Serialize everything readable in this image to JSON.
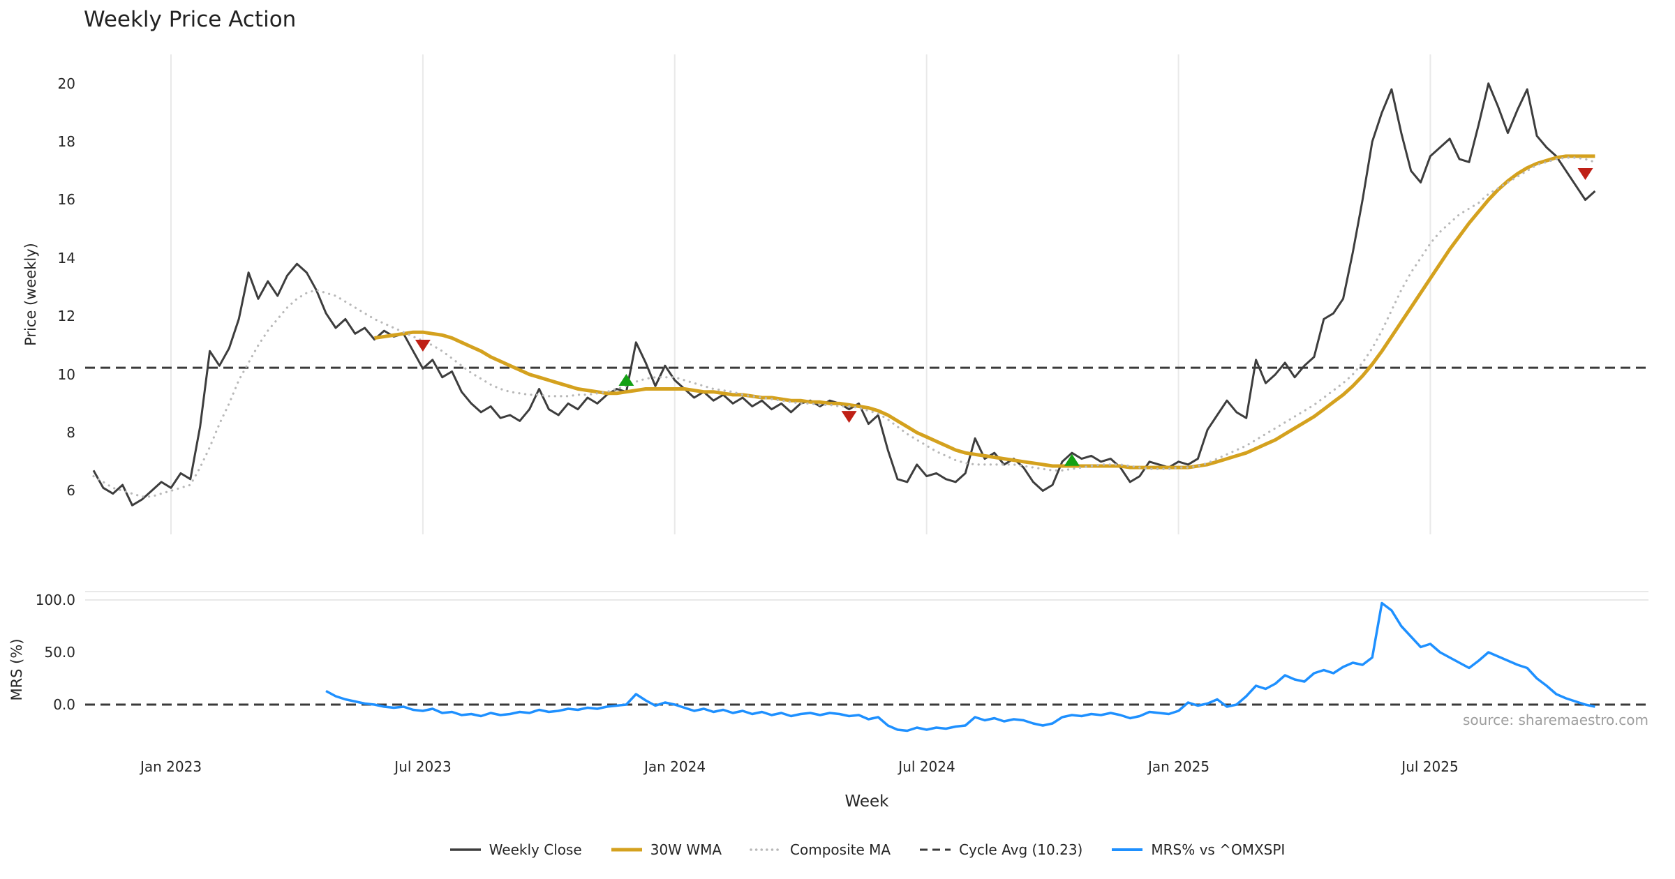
{
  "title": "Weekly Price Action",
  "source": "source: sharemaestro.com",
  "chart_data": {
    "type": "line",
    "x": {
      "label": "Week",
      "unit": "week",
      "total_weeks": 156,
      "ticks": [
        {
          "week": 8,
          "label": "Jan 2023"
        },
        {
          "week": 34,
          "label": "Jul 2023"
        },
        {
          "week": 60,
          "label": "Jan 2024"
        },
        {
          "week": 86,
          "label": "Jul 2024"
        },
        {
          "week": 112,
          "label": "Jan 2025"
        },
        {
          "week": 138,
          "label": "Jul 2025"
        }
      ]
    },
    "style": {
      "grid_color": "#e9e9e9",
      "background": "#ffffff",
      "tick_color": "#262626"
    },
    "marker_colors": {
      "buy": "#14a014",
      "sell": "#bf2016"
    },
    "panels": [
      {
        "name": "price",
        "ylabel": "Price (weekly)",
        "ylim": [
          4.5,
          21
        ],
        "yticks": [
          6,
          8,
          10,
          12,
          14,
          16,
          18,
          20
        ],
        "ytick_labels": [
          "6",
          "8",
          "10",
          "12",
          "14",
          "16",
          "18",
          "20"
        ],
        "hline": {
          "label": "Cycle Avg",
          "value": 10.23,
          "color": "#3a3a3a",
          "dash": "dashed"
        },
        "series": [
          {
            "id": "weekly-close",
            "name": "Weekly Close",
            "color": "#3d3d3d",
            "dash": "solid",
            "width": 3,
            "start_week": 0,
            "values": [
              6.7,
              6.1,
              5.9,
              6.2,
              5.5,
              5.7,
              6.0,
              6.3,
              6.1,
              6.6,
              6.4,
              8.2,
              10.8,
              10.3,
              10.9,
              11.9,
              13.5,
              12.6,
              13.2,
              12.7,
              13.4,
              13.8,
              13.5,
              12.9,
              12.1,
              11.6,
              11.9,
              11.4,
              11.6,
              11.2,
              11.5,
              11.3,
              11.4,
              10.8,
              10.2,
              10.5,
              9.9,
              10.1,
              9.4,
              9.0,
              8.7,
              8.9,
              8.5,
              8.6,
              8.4,
              8.8,
              9.5,
              8.8,
              8.6,
              9.0,
              8.8,
              9.2,
              9.0,
              9.3,
              9.5,
              9.4,
              11.1,
              10.4,
              9.6,
              10.3,
              9.8,
              9.5,
              9.2,
              9.4,
              9.1,
              9.3,
              9.0,
              9.2,
              8.9,
              9.1,
              8.8,
              9.0,
              8.7,
              9.0,
              9.1,
              8.9,
              9.1,
              9.0,
              8.8,
              9.0,
              8.3,
              8.6,
              7.4,
              6.4,
              6.3,
              6.9,
              6.5,
              6.6,
              6.4,
              6.3,
              6.6,
              7.8,
              7.1,
              7.3,
              6.9,
              7.1,
              6.8,
              6.3,
              6.0,
              6.2,
              7.0,
              7.3,
              7.1,
              7.2,
              7.0,
              7.1,
              6.8,
              6.3,
              6.5,
              7.0,
              6.9,
              6.8,
              7.0,
              6.9,
              7.1,
              8.1,
              8.6,
              9.1,
              8.7,
              8.5,
              10.5,
              9.7,
              10.0,
              10.4,
              9.9,
              10.3,
              10.6,
              11.9,
              12.1,
              12.6,
              14.2,
              16.0,
              18.0,
              19.0,
              19.8,
              18.3,
              17.0,
              16.6,
              17.5,
              17.8,
              18.1,
              17.4,
              17.3,
              18.6,
              20.0,
              19.2,
              18.3,
              19.1,
              19.8,
              18.2,
              17.8,
              17.5,
              17.0,
              16.5,
              16.0,
              16.3
            ]
          },
          {
            "id": "wma-30w",
            "name": "30W WMA",
            "color": "#d4a11e",
            "dash": "solid",
            "width": 5,
            "start_week": 29,
            "values": [
              11.25,
              11.3,
              11.35,
              11.4,
              11.45,
              11.45,
              11.4,
              11.35,
              11.25,
              11.1,
              10.95,
              10.8,
              10.6,
              10.45,
              10.3,
              10.15,
              10.0,
              9.9,
              9.8,
              9.7,
              9.6,
              9.5,
              9.45,
              9.4,
              9.35,
              9.35,
              9.4,
              9.45,
              9.5,
              9.5,
              9.5,
              9.5,
              9.5,
              9.45,
              9.4,
              9.4,
              9.35,
              9.3,
              9.3,
              9.25,
              9.2,
              9.2,
              9.15,
              9.1,
              9.1,
              9.05,
              9.05,
              9.0,
              9.0,
              8.95,
              8.9,
              8.85,
              8.75,
              8.6,
              8.4,
              8.2,
              8.0,
              7.85,
              7.7,
              7.55,
              7.4,
              7.3,
              7.25,
              7.2,
              7.15,
              7.1,
              7.05,
              7.0,
              6.95,
              6.9,
              6.85,
              6.85,
              6.85,
              6.85,
              6.85,
              6.85,
              6.85,
              6.85,
              6.8,
              6.8,
              6.8,
              6.8,
              6.8,
              6.8,
              6.8,
              6.85,
              6.9,
              7.0,
              7.1,
              7.2,
              7.3,
              7.45,
              7.6,
              7.75,
              7.95,
              8.15,
              8.35,
              8.55,
              8.8,
              9.05,
              9.3,
              9.6,
              9.95,
              10.35,
              10.8,
              11.3,
              11.8,
              12.3,
              12.8,
              13.3,
              13.8,
              14.3,
              14.75,
              15.2,
              15.6,
              16.0,
              16.35,
              16.65,
              16.9,
              17.1,
              17.25,
              17.35,
              17.45,
              17.5,
              17.5,
              17.5,
              17.5
            ]
          },
          {
            "id": "composite-ma",
            "name": "Composite MA",
            "color": "#b8b8b8",
            "dash": "dotted",
            "width": 3.2,
            "start_week": 0,
            "values": [
              6.5,
              6.3,
              6.1,
              6.0,
              5.9,
              5.8,
              5.8,
              5.9,
              6.0,
              6.1,
              6.2,
              6.8,
              7.5,
              8.3,
              9.0,
              9.8,
              10.4,
              11.0,
              11.5,
              11.9,
              12.3,
              12.6,
              12.8,
              12.9,
              12.8,
              12.7,
              12.5,
              12.3,
              12.1,
              11.9,
              11.75,
              11.6,
              11.45,
              11.3,
              11.15,
              11.0,
              10.8,
              10.55,
              10.3,
              10.05,
              9.85,
              9.65,
              9.5,
              9.4,
              9.35,
              9.3,
              9.3,
              9.25,
              9.25,
              9.25,
              9.3,
              9.3,
              9.35,
              9.4,
              9.5,
              9.6,
              9.75,
              9.85,
              9.9,
              9.9,
              9.9,
              9.8,
              9.7,
              9.6,
              9.5,
              9.45,
              9.4,
              9.3,
              9.25,
              9.2,
              9.15,
              9.1,
              9.05,
              9.0,
              9.0,
              8.95,
              8.95,
              8.9,
              8.9,
              8.85,
              8.75,
              8.65,
              8.45,
              8.2,
              7.95,
              7.75,
              7.55,
              7.35,
              7.2,
              7.05,
              6.95,
              6.9,
              6.9,
              6.9,
              6.9,
              6.9,
              6.85,
              6.8,
              6.75,
              6.7,
              6.7,
              6.75,
              6.8,
              6.85,
              6.9,
              6.9,
              6.9,
              6.85,
              6.8,
              6.75,
              6.75,
              6.75,
              6.8,
              6.8,
              6.85,
              6.95,
              7.1,
              7.25,
              7.4,
              7.55,
              7.75,
              7.95,
              8.15,
              8.35,
              8.55,
              8.75,
              8.95,
              9.2,
              9.45,
              9.7,
              10.0,
              10.4,
              10.9,
              11.5,
              12.2,
              12.9,
              13.5,
              14.0,
              14.5,
              14.9,
              15.2,
              15.5,
              15.7,
              15.9,
              16.2,
              16.4,
              16.6,
              16.8,
              17.0,
              17.2,
              17.3,
              17.4,
              17.45,
              17.45,
              17.4,
              17.3
            ]
          }
        ],
        "markers": [
          {
            "week": 34,
            "value": 11.0,
            "type": "sell"
          },
          {
            "week": 55,
            "value": 9.8,
            "type": "buy"
          },
          {
            "week": 78,
            "value": 8.55,
            "type": "sell"
          },
          {
            "week": 101,
            "value": 7.05,
            "type": "buy"
          },
          {
            "week": 154,
            "value": 16.9,
            "type": "sell"
          }
        ]
      },
      {
        "name": "mrs",
        "ylabel": "MRS (%)",
        "ylim": [
          -42,
          108
        ],
        "yticks": [
          0,
          50,
          100
        ],
        "ytick_labels": [
          "0.0",
          "50.0",
          "100.0"
        ],
        "grid_hlines": [
          100
        ],
        "hline": {
          "label": "Zero line",
          "value": 0,
          "color": "#3a3a3a",
          "dash": "dashed"
        },
        "series": [
          {
            "id": "mrs",
            "name": "MRS% vs ^OMXSPI",
            "color": "#1e90ff",
            "dash": "solid",
            "width": 3.5,
            "start_week": 24,
            "values": [
              13,
              8,
              5,
              3,
              1,
              0,
              -2,
              -3,
              -2,
              -5,
              -6,
              -4,
              -8,
              -7,
              -10,
              -9,
              -11,
              -8,
              -10,
              -9,
              -7,
              -8,
              -5,
              -7,
              -6,
              -4,
              -5,
              -3,
              -4,
              -2,
              -1,
              0,
              10,
              4,
              -1,
              2,
              0,
              -3,
              -6,
              -4,
              -7,
              -5,
              -8,
              -6,
              -9,
              -7,
              -10,
              -8,
              -11,
              -9,
              -8,
              -10,
              -8,
              -9,
              -11,
              -10,
              -14,
              -12,
              -20,
              -24,
              -25,
              -22,
              -24,
              -22,
              -23,
              -21,
              -20,
              -12,
              -15,
              -13,
              -16,
              -14,
              -15,
              -18,
              -20,
              -18,
              -12,
              -10,
              -11,
              -9,
              -10,
              -8,
              -10,
              -13,
              -11,
              -7,
              -8,
              -9,
              -6,
              2,
              -1,
              1,
              5,
              -2,
              0,
              8,
              18,
              15,
              20,
              28,
              24,
              22,
              30,
              33,
              30,
              36,
              40,
              38,
              45,
              97,
              90,
              75,
              65,
              55,
              58,
              50,
              45,
              40,
              35,
              42,
              50,
              46,
              42,
              38,
              35,
              25,
              18,
              10,
              6,
              3,
              0,
              -2
            ]
          }
        ],
        "markers": []
      }
    ],
    "legend": [
      {
        "label": "Weekly Close",
        "color": "#3d3d3d",
        "dash": "solid",
        "width": 3.5
      },
      {
        "label": "30W WMA",
        "color": "#d4a11e",
        "dash": "solid",
        "width": 5
      },
      {
        "label": "Composite MA",
        "color": "#b8b8b8",
        "dash": "dotted",
        "width": 3.5
      },
      {
        "label": "Cycle Avg (10.23)",
        "color": "#3a3a3a",
        "dash": "dashed",
        "width": 3
      },
      {
        "label": "MRS% vs ^OMXSPI",
        "color": "#1e90ff",
        "dash": "solid",
        "width": 4
      }
    ]
  }
}
